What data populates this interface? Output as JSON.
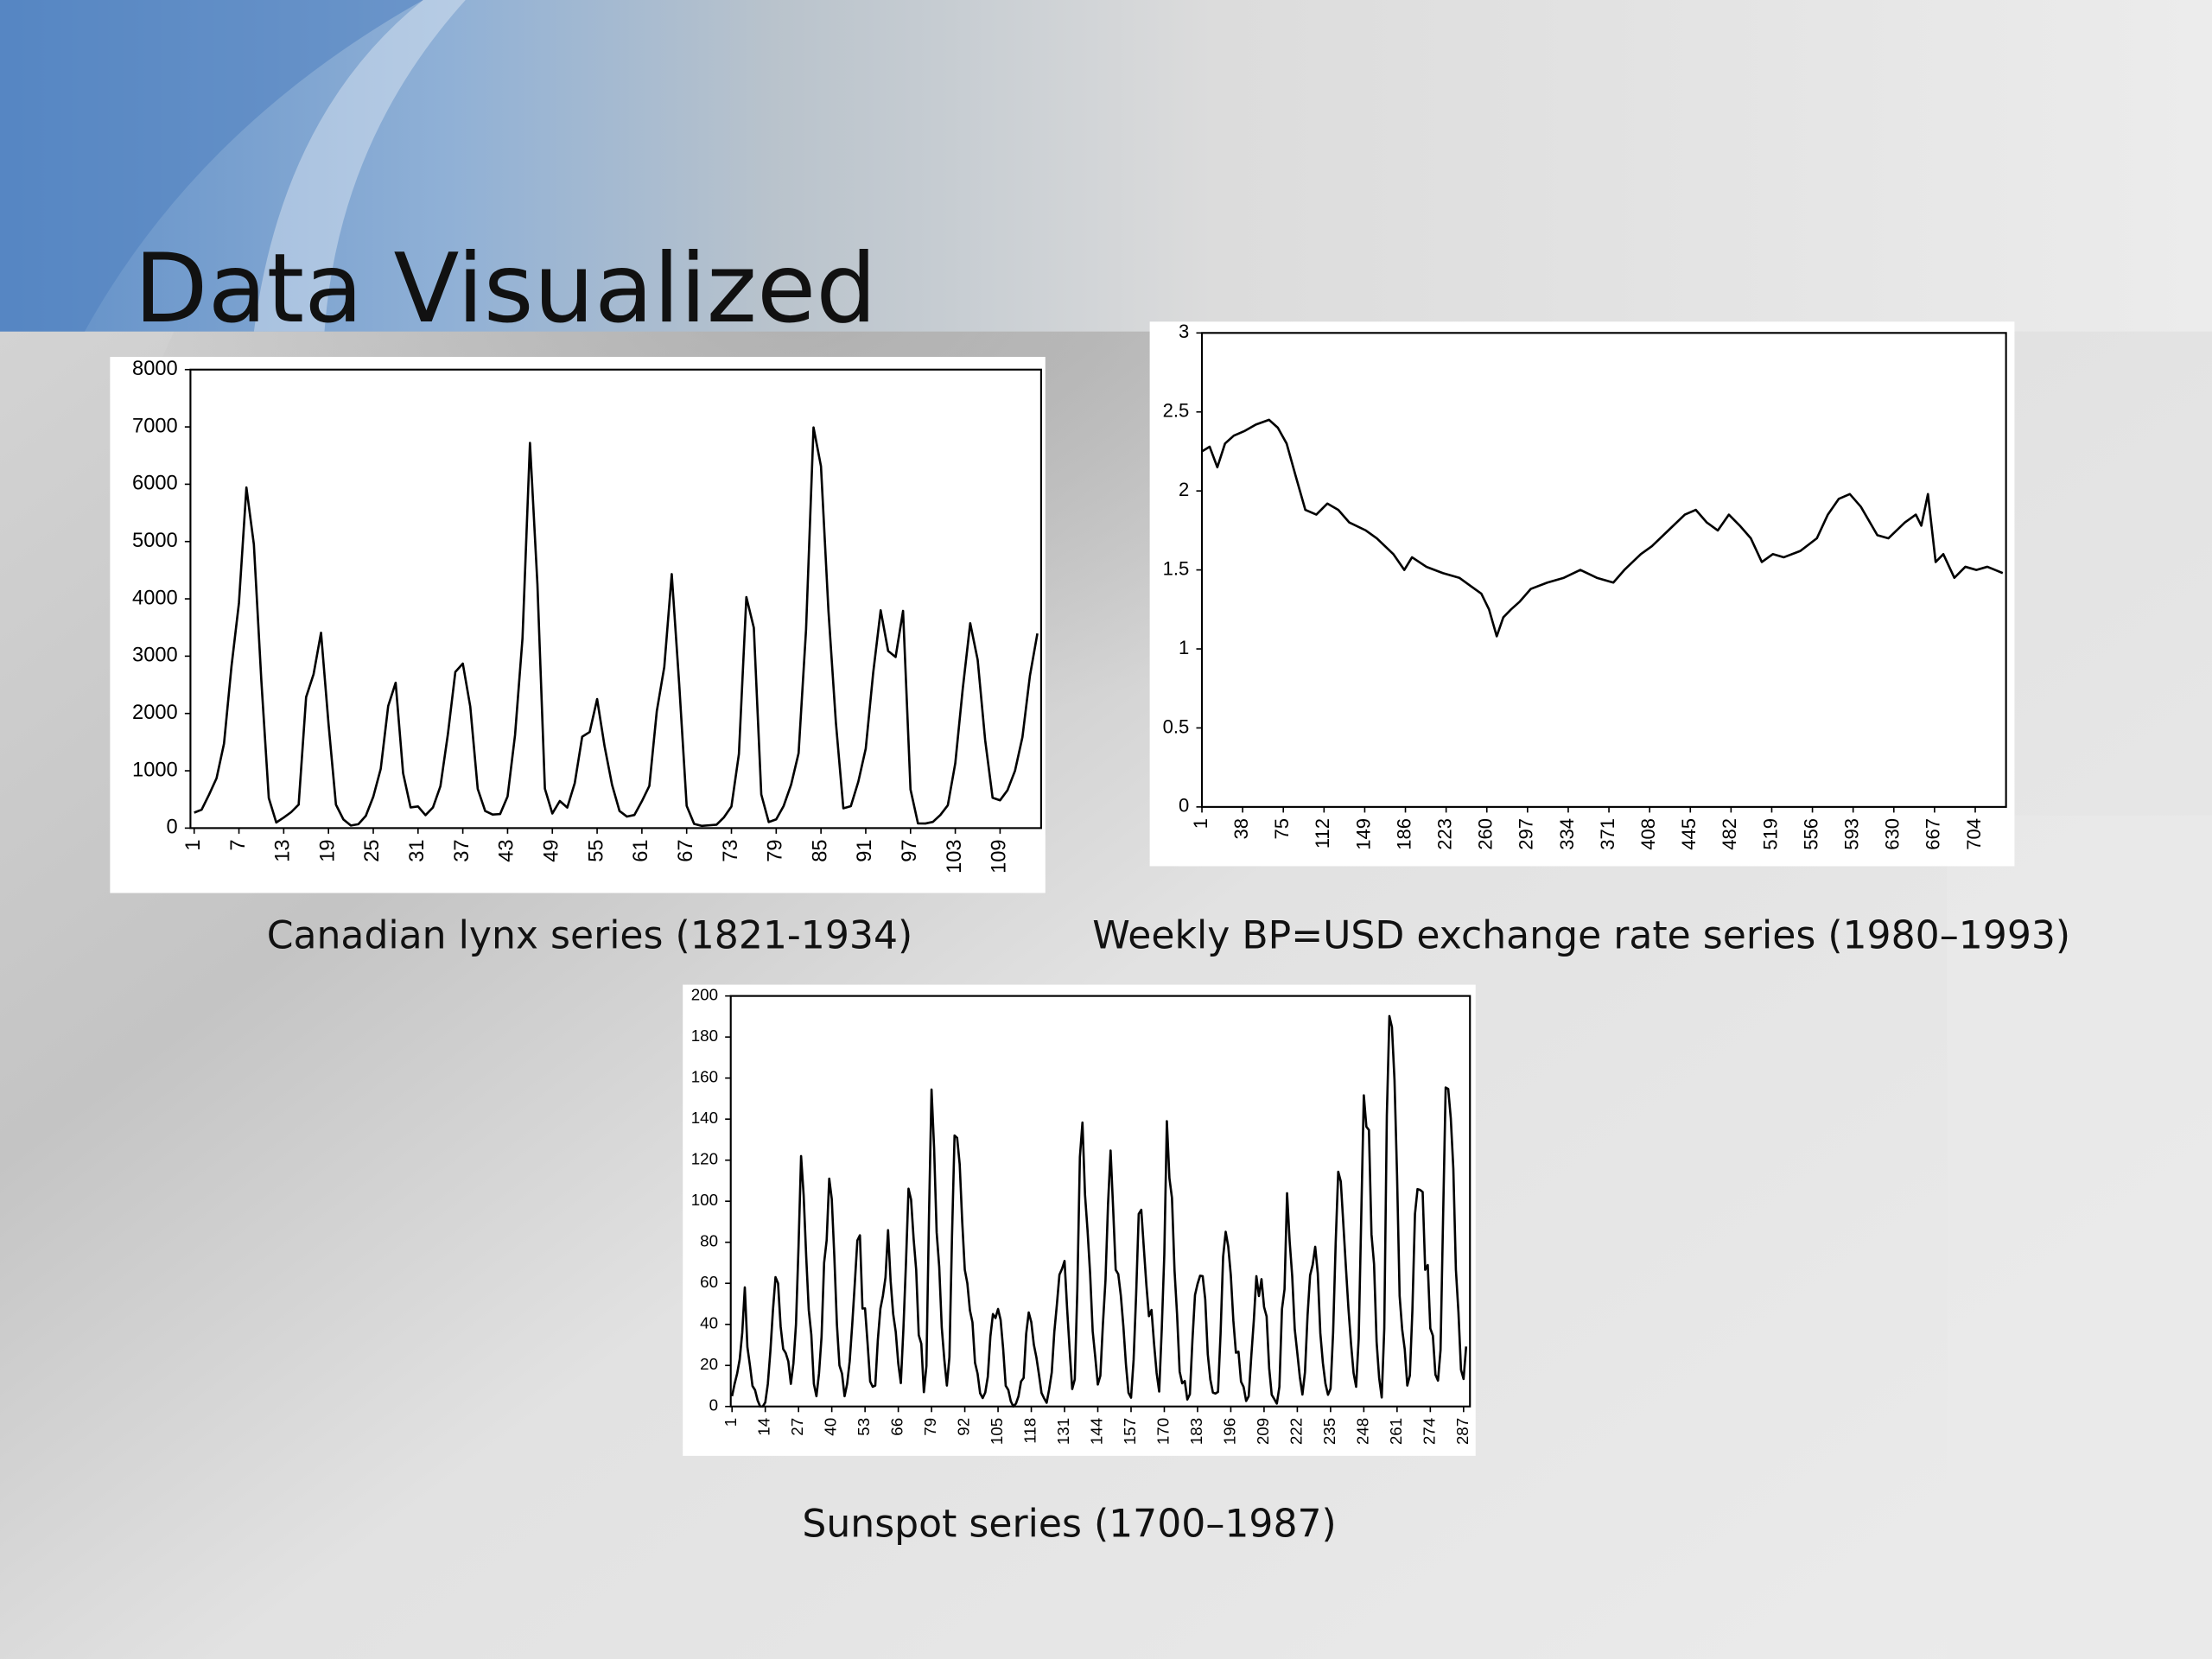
{
  "title": "Data Visualized",
  "chart_data": [
    {
      "type": "line",
      "caption": "Canadian lynx series (1821-1934)",
      "color": "#000000",
      "xlim": [
        0.5,
        114.5
      ],
      "xticks": [
        1,
        7,
        13,
        19,
        25,
        31,
        37,
        43,
        49,
        55,
        61,
        67,
        73,
        79,
        85,
        91,
        97,
        103,
        109
      ],
      "ylim": [
        0,
        8000
      ],
      "yticks": [
        0,
        1000,
        2000,
        3000,
        4000,
        5000,
        6000,
        7000,
        8000
      ],
      "x": [
        1,
        2,
        3,
        4,
        5,
        6,
        7,
        8,
        9,
        10,
        11,
        12,
        13,
        14,
        15,
        16,
        17,
        18,
        19,
        20,
        21,
        22,
        23,
        24,
        25,
        26,
        27,
        28,
        29,
        30,
        31,
        32,
        33,
        34,
        35,
        36,
        37,
        38,
        39,
        40,
        41,
        42,
        43,
        44,
        45,
        46,
        47,
        48,
        49,
        50,
        51,
        52,
        53,
        54,
        55,
        56,
        57,
        58,
        59,
        60,
        61,
        62,
        63,
        64,
        65,
        66,
        67,
        68,
        69,
        70,
        71,
        72,
        73,
        74,
        75,
        76,
        77,
        78,
        79,
        80,
        81,
        82,
        83,
        84,
        85,
        86,
        87,
        88,
        89,
        90,
        91,
        92,
        93,
        94,
        95,
        96,
        97,
        98,
        99,
        100,
        101,
        102,
        103,
        104,
        105,
        106,
        107,
        108,
        109,
        110,
        111,
        112,
        113,
        114
      ],
      "values": [
        269,
        321,
        585,
        871,
        1475,
        2821,
        3928,
        5943,
        4950,
        2577,
        523,
        98,
        184,
        279,
        409,
        2285,
        2685,
        3409,
        1824,
        409,
        151,
        45,
        68,
        213,
        546,
        1033,
        2129,
        2536,
        957,
        361,
        377,
        225,
        360,
        731,
        1638,
        2725,
        2871,
        2119,
        684,
        299,
        236,
        245,
        552,
        1623,
        3311,
        6721,
        4254,
        687,
        255,
        473,
        358,
        784,
        1594,
        1676,
        2251,
        1426,
        756,
        299,
        201,
        229,
        469,
        736,
        2042,
        2811,
        4431,
        2511,
        389,
        73,
        39,
        49,
        59,
        188,
        377,
        1292,
        4031,
        3495,
        587,
        105,
        153,
        387,
        758,
        1307,
        3465,
        6991,
        6313,
        3794,
        1836,
        345,
        382,
        808,
        1388,
        2713,
        3800,
        3091,
        2985,
        3790,
        674,
        81,
        80,
        108,
        229,
        399,
        1132,
        2432,
        3574,
        2935,
        1537,
        529,
        485,
        662,
        1000,
        1590,
        2657,
        3396
      ]
    },
    {
      "type": "line",
      "caption": "Weekly BP=USD exchange rate series (1980–1993)",
      "color": "#000000",
      "xlim": [
        1,
        732
      ],
      "xticks": [
        1,
        38,
        75,
        112,
        149,
        186,
        223,
        260,
        297,
        334,
        371,
        408,
        445,
        482,
        519,
        556,
        593,
        630,
        667,
        704
      ],
      "ylim": [
        0,
        3
      ],
      "yticks": [
        0,
        0.5,
        1,
        1.5,
        2,
        2.5,
        3
      ],
      "x": [
        1,
        8,
        15,
        22,
        30,
        40,
        50,
        62,
        70,
        78,
        86,
        95,
        105,
        115,
        125,
        135,
        150,
        160,
        175,
        185,
        192,
        205,
        220,
        235,
        245,
        255,
        262,
        269,
        275,
        282,
        290,
        300,
        315,
        330,
        345,
        360,
        375,
        385,
        400,
        410,
        425,
        440,
        450,
        460,
        470,
        480,
        490,
        500,
        510,
        520,
        530,
        545,
        560,
        570,
        580,
        590,
        600,
        615,
        625,
        640,
        650,
        655,
        661,
        668,
        675,
        685,
        695,
        705,
        715,
        722,
        729
      ],
      "values": [
        2.25,
        2.28,
        2.15,
        2.3,
        2.35,
        2.38,
        2.42,
        2.45,
        2.4,
        2.3,
        2.1,
        1.88,
        1.85,
        1.92,
        1.88,
        1.8,
        1.75,
        1.7,
        1.6,
        1.5,
        1.58,
        1.52,
        1.48,
        1.45,
        1.4,
        1.35,
        1.25,
        1.08,
        1.2,
        1.25,
        1.3,
        1.38,
        1.42,
        1.45,
        1.5,
        1.45,
        1.42,
        1.5,
        1.6,
        1.65,
        1.75,
        1.85,
        1.88,
        1.8,
        1.75,
        1.85,
        1.78,
        1.7,
        1.55,
        1.6,
        1.58,
        1.62,
        1.7,
        1.85,
        1.95,
        1.98,
        1.9,
        1.72,
        1.7,
        1.8,
        1.85,
        1.78,
        1.98,
        1.55,
        1.6,
        1.45,
        1.52,
        1.5,
        1.52,
        1.5,
        1.48
      ]
    },
    {
      "type": "line",
      "caption": "Sunspot series (1700–1987)",
      "color": "#000000",
      "xlim": [
        0.5,
        289.5
      ],
      "xticks": [
        1,
        14,
        27,
        40,
        53,
        66,
        79,
        92,
        105,
        118,
        131,
        144,
        157,
        170,
        183,
        196,
        209,
        222,
        235,
        248,
        261,
        274,
        287
      ],
      "ylim": [
        0,
        200
      ],
      "yticks": [
        0,
        20,
        40,
        60,
        80,
        100,
        120,
        140,
        160,
        180,
        200
      ],
      "x": [
        1,
        2,
        3,
        4,
        5,
        6,
        7,
        8,
        9,
        10,
        11,
        12,
        13,
        14,
        15,
        16,
        17,
        18,
        19,
        20,
        21,
        22,
        23,
        24,
        25,
        26,
        27,
        28,
        29,
        30,
        31,
        32,
        33,
        34,
        35,
        36,
        37,
        38,
        39,
        40,
        41,
        42,
        43,
        44,
        45,
        46,
        47,
        48,
        49,
        50,
        51,
        52,
        53,
        54,
        55,
        56,
        57,
        58,
        59,
        60,
        61,
        62,
        63,
        64,
        65,
        66,
        67,
        68,
        69,
        70,
        71,
        72,
        73,
        74,
        75,
        76,
        77,
        78,
        79,
        80,
        81,
        82,
        83,
        84,
        85,
        86,
        87,
        88,
        89,
        90,
        91,
        92,
        93,
        94,
        95,
        96,
        97,
        98,
        99,
        100,
        101,
        102,
        103,
        104,
        105,
        106,
        107,
        108,
        109,
        110,
        111,
        112,
        113,
        114,
        115,
        116,
        117,
        118,
        119,
        120,
        121,
        122,
        123,
        124,
        125,
        126,
        127,
        128,
        129,
        130,
        131,
        132,
        133,
        134,
        135,
        136,
        137,
        138,
        139,
        140,
        141,
        142,
        143,
        144,
        145,
        146,
        147,
        148,
        149,
        150,
        151,
        152,
        153,
        154,
        155,
        156,
        157,
        158,
        159,
        160,
        161,
        162,
        163,
        164,
        165,
        166,
        167,
        168,
        169,
        170,
        171,
        172,
        173,
        174,
        175,
        176,
        177,
        178,
        179,
        180,
        181,
        182,
        183,
        184,
        185,
        186,
        187,
        188,
        189,
        190,
        191,
        192,
        193,
        194,
        195,
        196,
        197,
        198,
        199,
        200,
        201,
        202,
        203,
        204,
        205,
        206,
        207,
        208,
        209,
        210,
        211,
        212,
        213,
        214,
        215,
        216,
        217,
        218,
        219,
        220,
        221,
        222,
        223,
        224,
        225,
        226,
        227,
        228,
        229,
        230,
        231,
        232,
        233,
        234,
        235,
        236,
        237,
        238,
        239,
        240,
        241,
        242,
        243,
        244,
        245,
        246,
        247,
        248,
        249,
        250,
        251,
        252,
        253,
        254,
        255,
        256,
        257,
        258,
        259,
        260,
        261,
        262,
        263,
        264,
        265,
        266,
        267,
        268,
        269,
        270,
        271,
        272,
        273,
        274,
        275,
        276,
        277,
        278,
        279,
        280,
        281,
        282,
        283,
        284,
        285,
        286,
        287,
        288
      ],
      "values": [
        5,
        11,
        16,
        23,
        36,
        58,
        29,
        20,
        10,
        8,
        3,
        0,
        0,
        2,
        11,
        27,
        47,
        63,
        60,
        39,
        28,
        26,
        22,
        11,
        21,
        40,
        78,
        122,
        103,
        73,
        47,
        35,
        11,
        5,
        16,
        34,
        70,
        81,
        111,
        101,
        73,
        40,
        20,
        16,
        5,
        11,
        22,
        40,
        60,
        80.9,
        83.4,
        47.7,
        47.8,
        30.7,
        12.2,
        9.6,
        10.2,
        32.4,
        47.6,
        54,
        62.9,
        85.9,
        61.2,
        45.1,
        36.4,
        20.9,
        11.4,
        37.8,
        69.8,
        106.1,
        100.8,
        81.6,
        66.5,
        34.8,
        30.6,
        7,
        19.8,
        92.5,
        154.4,
        125.9,
        84.8,
        68.1,
        38.5,
        22.8,
        10.2,
        24.1,
        82.9,
        132,
        130.9,
        118.1,
        89.9,
        66.6,
        60,
        46.9,
        41,
        21.3,
        16,
        6.4,
        4.1,
        6.8,
        14.5,
        34,
        45,
        43.1,
        47.5,
        42.2,
        28.1,
        10.1,
        8.1,
        2.5,
        0,
        1.4,
        5,
        12.2,
        13.9,
        35.4,
        45.8,
        41.1,
        30.1,
        23.9,
        15.6,
        6.6,
        4,
        1.8,
        8.5,
        16.6,
        36.3,
        49.6,
        64.2,
        67,
        70.9,
        47.8,
        27.5,
        8.5,
        13.2,
        56.9,
        121.5,
        138.3,
        103.2,
        85.7,
        64.6,
        36.7,
        24.2,
        10.7,
        15,
        40.1,
        61.5,
        98.5,
        124.7,
        96.3,
        66.6,
        64.5,
        54.1,
        39,
        20.6,
        6.7,
        4.3,
        22.7,
        54.8,
        93.8,
        95.8,
        77.2,
        59.1,
        44,
        47,
        30.5,
        16.3,
        7.3,
        37.6,
        74,
        139,
        111.2,
        101.6,
        66.2,
        44.7,
        17,
        11.3,
        12.4,
        3.4,
        6,
        32.3,
        54.3,
        59.7,
        63.7,
        63.5,
        52.2,
        25.4,
        13.1,
        6.8,
        6.3,
        7.1,
        35.6,
        73,
        85.1,
        78,
        64,
        41.8,
        26.2,
        26.7,
        12.1,
        9.5,
        2.7,
        5,
        24.4,
        42,
        63.5,
        53.8,
        62,
        48.5,
        43.9,
        18.6,
        5.7,
        3.6,
        1.4,
        9.6,
        47.4,
        57.1,
        103.9,
        80.6,
        63.6,
        37.6,
        26.1,
        14.2,
        5.8,
        16.7,
        44.3,
        63.9,
        69,
        77.8,
        64.9,
        35.7,
        21.2,
        11.1,
        5.7,
        8.7,
        36.1,
        79.7,
        114.4,
        109.6,
        88.8,
        67.8,
        47.5,
        30.6,
        16.3,
        9.6,
        33.2,
        92.6,
        151.6,
        136.3,
        134.7,
        83.9,
        69.4,
        31.5,
        13.9,
        4.4,
        38,
        141.7,
        190.2,
        184.8,
        159,
        112.3,
        53.9,
        37.5,
        27.9,
        10.2,
        15.1,
        47,
        93.8,
        105.9,
        105.5,
        104.5,
        66.6,
        68.9,
        38,
        34.5,
        15.5,
        12.6,
        27.5,
        92.5,
        155.4,
        154.7,
        140.5,
        115.9,
        66.6,
        45.9,
        17.9,
        13.4,
        29.2
      ]
    }
  ]
}
